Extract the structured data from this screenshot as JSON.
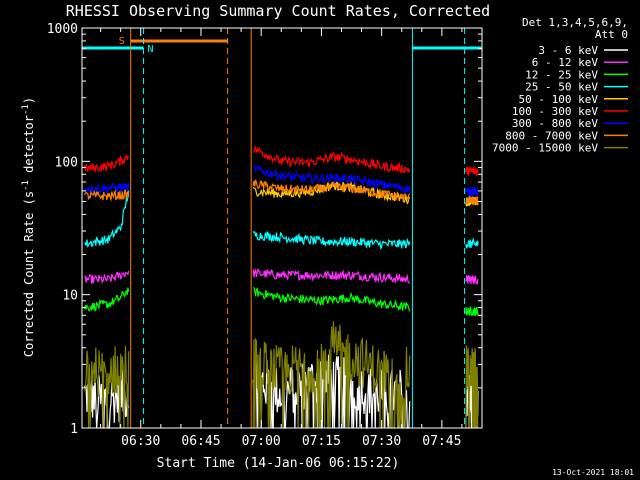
{
  "chart_data": {
    "type": "line",
    "title": "RHESSI Observing Summary Count Rates, Corrected",
    "xlabel": "Start Time (14-Jan-06 06:15:22)",
    "ylabel": "Corrected Count Rate (s",
    "ylabel_sup1": "-1",
    "ylabel_mid": " detector",
    "ylabel_sup2": "-1",
    "ylabel_end": ")",
    "yscale": "log",
    "ylim": [
      1,
      1000
    ],
    "xlim": [
      "06:15:22",
      "07:55:00"
    ],
    "x_ticks": [
      "06:30",
      "06:45",
      "07:00",
      "07:15",
      "07:30",
      "07:45"
    ],
    "y_ticks": [
      "1",
      "10",
      "100",
      "1000"
    ],
    "grid": false,
    "legend_position": "top-right",
    "legend_header": [
      "Det 1,3,4,5,6,9,",
      "Att 0"
    ],
    "footer": "13-Oct-2021 18:01",
    "data_gaps": [
      [
        "06:27:30",
        "06:57:30"
      ],
      [
        "07:37:40",
        "07:50:40"
      ]
    ],
    "series": [
      {
        "name": "3 - 6 keV",
        "color": "#ffffff",
        "values": [
          [
            "06:16:00",
            1.8
          ],
          [
            "06:20:00",
            1.6
          ],
          [
            "06:24:00",
            1.7
          ],
          [
            "06:27:00",
            1.8
          ],
          [
            "06:58:00",
            2.5
          ],
          [
            "07:05:00",
            1.8
          ],
          [
            "07:15:00",
            2.4
          ],
          [
            "07:20:00",
            2.2
          ],
          [
            "07:30:00",
            1.8
          ],
          [
            "07:37:00",
            1.8
          ],
          [
            "07:51:00",
            1.8
          ],
          [
            "07:54:00",
            1.9
          ]
        ]
      },
      {
        "name": "6 - 12 keV",
        "color": "#ff2fff",
        "values": [
          [
            "06:16:00",
            13
          ],
          [
            "06:22:00",
            13
          ],
          [
            "06:25:00",
            14
          ],
          [
            "06:27:00",
            15
          ],
          [
            "06:58:00",
            14.5
          ],
          [
            "07:05:00",
            14
          ],
          [
            "07:15:00",
            14
          ],
          [
            "07:22:00",
            14
          ],
          [
            "07:30:00",
            13.5
          ],
          [
            "07:37:00",
            13
          ],
          [
            "07:51:00",
            13
          ],
          [
            "07:54:00",
            13
          ]
        ]
      },
      {
        "name": "12 - 25 keV",
        "color": "#00ff00",
        "values": [
          [
            "06:16:00",
            8
          ],
          [
            "06:22:00",
            8.5
          ],
          [
            "06:25:00",
            9.5
          ],
          [
            "06:27:00",
            11
          ],
          [
            "06:58:00",
            10.5
          ],
          [
            "07:05:00",
            9.5
          ],
          [
            "07:15:00",
            9
          ],
          [
            "07:22:00",
            9.5
          ],
          [
            "07:30:00",
            8.5
          ],
          [
            "07:37:00",
            8
          ],
          [
            "07:51:00",
            7.5
          ],
          [
            "07:54:00",
            7.5
          ]
        ]
      },
      {
        "name": "25 - 50 keV",
        "color": "#00ffff",
        "values": [
          [
            "06:16:00",
            24
          ],
          [
            "06:22:00",
            26
          ],
          [
            "06:25:00",
            32
          ],
          [
            "06:27:00",
            60
          ],
          [
            "06:58:00",
            28
          ],
          [
            "07:05:00",
            27
          ],
          [
            "07:15:00",
            25
          ],
          [
            "07:22:00",
            25
          ],
          [
            "07:30:00",
            24
          ],
          [
            "07:37:00",
            24
          ],
          [
            "07:51:00",
            24
          ],
          [
            "07:54:00",
            24
          ]
        ]
      },
      {
        "name": "50 - 100 keV",
        "color": "#ffcc00",
        "values": [
          [
            "06:58:00",
            60
          ],
          [
            "07:05:00",
            57
          ],
          [
            "07:12:00",
            59
          ],
          [
            "07:18:00",
            66
          ],
          [
            "07:22:00",
            64
          ],
          [
            "07:30:00",
            56
          ],
          [
            "07:37:00",
            52
          ],
          [
            "07:51:00",
            50
          ],
          [
            "07:54:00",
            50
          ]
        ]
      },
      {
        "name": "100 - 300 keV",
        "color": "#ff0000",
        "values": [
          [
            "06:16:00",
            88
          ],
          [
            "06:22:00",
            92
          ],
          [
            "06:25:00",
            100
          ],
          [
            "06:27:00",
            110
          ],
          [
            "06:58:00",
            125
          ],
          [
            "07:05:00",
            100
          ],
          [
            "07:12:00",
            98
          ],
          [
            "07:18:00",
            108
          ],
          [
            "07:22:00",
            104
          ],
          [
            "07:30:00",
            92
          ],
          [
            "07:37:00",
            87
          ],
          [
            "07:51:00",
            85
          ],
          [
            "07:54:00",
            84
          ]
        ]
      },
      {
        "name": "300 - 800 keV",
        "color": "#0000ff",
        "values": [
          [
            "06:16:00",
            63
          ],
          [
            "06:22:00",
            63
          ],
          [
            "06:27:00",
            64
          ],
          [
            "06:58:00",
            88
          ],
          [
            "07:05:00",
            78
          ],
          [
            "07:12:00",
            74
          ],
          [
            "07:18:00",
            75
          ],
          [
            "07:22:00",
            74
          ],
          [
            "07:30:00",
            67
          ],
          [
            "07:37:00",
            62
          ],
          [
            "07:51:00",
            60
          ],
          [
            "07:54:00",
            59
          ]
        ]
      },
      {
        "name": "800 - 7000 keV",
        "color": "#ff7f00",
        "values": [
          [
            "06:16:00",
            55
          ],
          [
            "06:22:00",
            55
          ],
          [
            "06:27:00",
            56
          ],
          [
            "06:58:00",
            68
          ],
          [
            "07:05:00",
            62
          ],
          [
            "07:12:00",
            61
          ],
          [
            "07:18:00",
            64
          ],
          [
            "07:22:00",
            63
          ],
          [
            "07:30:00",
            57
          ],
          [
            "07:37:00",
            53
          ],
          [
            "07:51:00",
            51
          ],
          [
            "07:54:00",
            50
          ]
        ]
      },
      {
        "name": "7000 - 15000 keV",
        "color": "#7f7f00",
        "values": [
          [
            "06:16:00",
            2.7
          ],
          [
            "06:22:00",
            2.6
          ],
          [
            "06:27:00",
            3.0
          ],
          [
            "06:58:00",
            3.2
          ],
          [
            "07:05:00",
            2.6
          ],
          [
            "07:13:00",
            2.9
          ],
          [
            "07:17:00",
            4.2
          ],
          [
            "07:22:00",
            3.5
          ],
          [
            "07:30:00",
            2.6
          ],
          [
            "07:37:00",
            2.6
          ],
          [
            "07:51:00",
            2.7
          ],
          [
            "07:54:00",
            2.6
          ]
        ]
      }
    ],
    "flags": [
      {
        "label": "S",
        "color": "#ff7f00",
        "start": "06:27:30",
        "end": "06:51:38"
      },
      {
        "label": "N",
        "color": "#00ffff",
        "start": "06:15:22",
        "end": "06:30:42"
      },
      {
        "label": "",
        "color": "#00ffff",
        "start": "07:37:40",
        "end": "07:54:50"
      }
    ]
  }
}
